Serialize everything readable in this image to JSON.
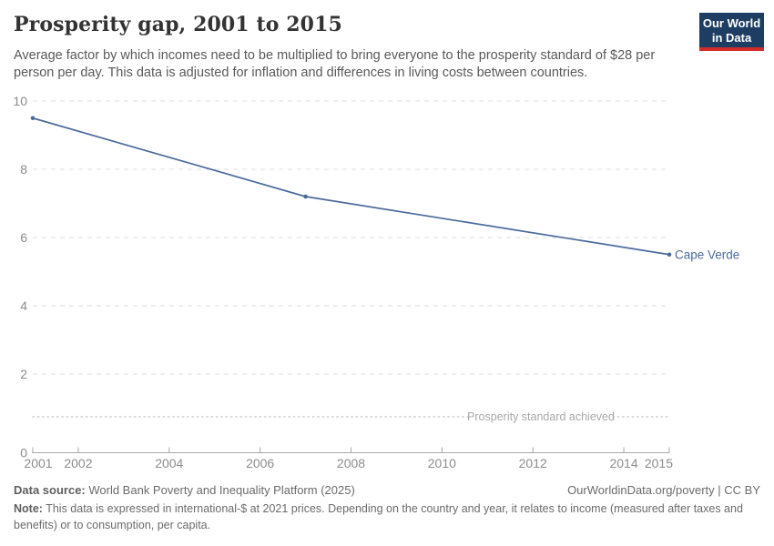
{
  "header": {
    "title": "Prosperity gap, 2001 to 2015",
    "subtitle": "Average factor by which incomes need to be multiplied to bring everyone to the prosperity standard of $28 per person per day. This data is adjusted for inflation and differences in living costs between countries.",
    "logo": {
      "line1": "Our World",
      "line2": "in Data"
    }
  },
  "chart_data": {
    "type": "line",
    "title": "Prosperity gap, 2001 to 2015",
    "xlabel": "",
    "ylabel": "",
    "xlim": [
      2001,
      2015
    ],
    "ylim": [
      0,
      10
    ],
    "x_ticks": [
      2001,
      2002,
      2004,
      2006,
      2008,
      2010,
      2012,
      2014,
      2015
    ],
    "y_ticks": [
      0,
      2,
      4,
      6,
      8,
      10
    ],
    "grid": true,
    "series": [
      {
        "name": "Cape Verde",
        "color": "#4c6a9c",
        "points": [
          {
            "year": 2001,
            "value": 9.5
          },
          {
            "year": 2007,
            "value": 7.2
          },
          {
            "year": 2015,
            "value": 5.5
          }
        ]
      }
    ],
    "end_label": "Cape Verde",
    "annotation": "Prosperity standard achieved"
  },
  "footer": {
    "datasource_label": "Data source:",
    "datasource_value": " World Bank Poverty and Inequality Platform (2025)",
    "attribution": "OurWorldinData.org/poverty | CC BY",
    "note_label": "Note:",
    "note_value": " This data is expressed in international-$ at 2021 prices. Depending on the country and year, it relates to income (measured after taxes and benefits) or to consumption, per capita."
  },
  "colors": {
    "line": "#4c6a9c",
    "grid": "#dcdcdc",
    "axis": "#a8a8a8",
    "tick_label": "#8c8c8c",
    "annotation": "#a8a8a8",
    "standard_line": "#cfcfcf",
    "logo_bg": "#1d3d63",
    "logo_bar": "#d42b2b"
  }
}
